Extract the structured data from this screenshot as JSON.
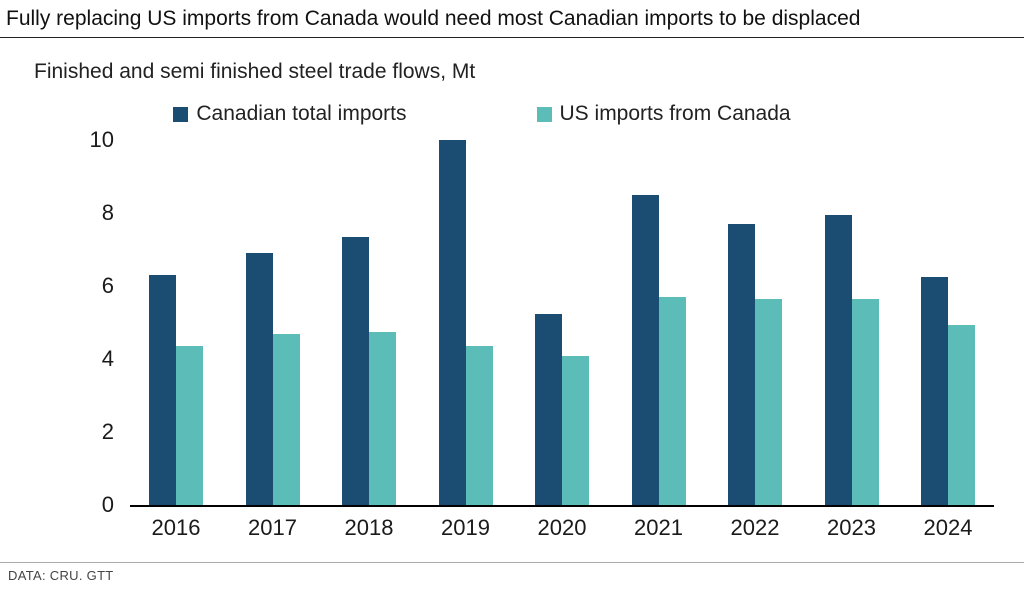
{
  "header": {
    "title": "Fully replacing US imports from Canada would need most Canadian imports to be displaced"
  },
  "subtitle": "Finished and semi finished steel trade flows, Mt",
  "footer": {
    "source": "DATA: CRU. GTT"
  },
  "chart_data": {
    "type": "bar",
    "title": "Finished and semi finished steel trade flows, Mt",
    "categories": [
      "2016",
      "2017",
      "2018",
      "2019",
      "2020",
      "2021",
      "2022",
      "2023",
      "2024"
    ],
    "series": [
      {
        "name": "Canadian total imports",
        "color": "#1b4d73",
        "values": [
          6.3,
          6.9,
          7.35,
          10.0,
          5.25,
          8.5,
          7.7,
          7.95,
          6.25
        ]
      },
      {
        "name": "US imports from Canada",
        "color": "#5bbcb8",
        "values": [
          4.35,
          4.7,
          4.75,
          4.35,
          4.1,
          5.7,
          5.65,
          5.65,
          4.95
        ]
      }
    ],
    "xlabel": "",
    "ylabel": "",
    "ylim": [
      0,
      10
    ],
    "yticks": [
      0,
      2,
      4,
      6,
      8,
      10
    ],
    "grid": false,
    "legend_position": "top-center"
  }
}
